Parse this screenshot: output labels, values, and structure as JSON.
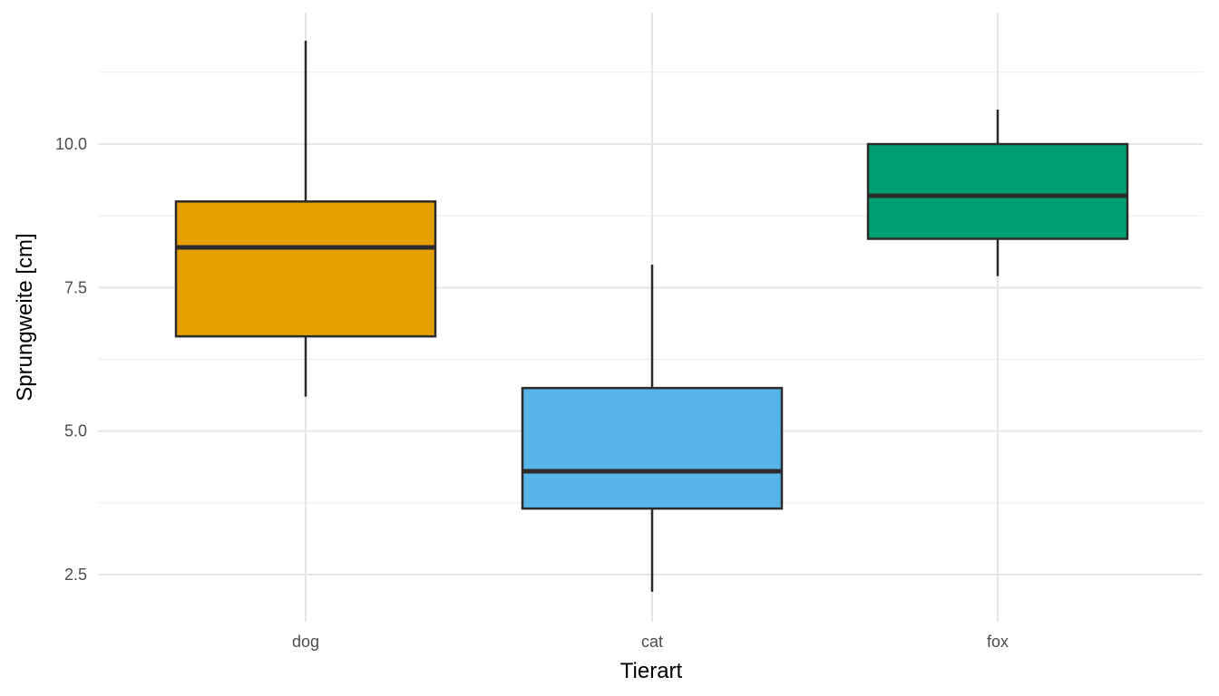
{
  "chart_data": {
    "type": "boxplot",
    "title": "",
    "xlabel": "Tierart",
    "ylabel": "Sprungweite [cm]",
    "ylim": [
      1.8,
      12.3
    ],
    "yticks": [
      2.5,
      5.0,
      7.5,
      10.0
    ],
    "ytick_labels": [
      "2.5",
      "5.0",
      "7.5",
      "10.0"
    ],
    "ygrid_minor": [
      3.75,
      6.25,
      8.75,
      11.25
    ],
    "grid": true,
    "categories": [
      "dog",
      "cat",
      "fox"
    ],
    "boxes": [
      {
        "category": "dog",
        "whisker_low": 5.6,
        "q1": 6.65,
        "median": 8.2,
        "q3": 9.0,
        "whisker_high": 11.8,
        "color": "#E69F00"
      },
      {
        "category": "cat",
        "whisker_low": 2.2,
        "q1": 3.65,
        "median": 4.3,
        "q3": 5.75,
        "whisker_high": 7.9,
        "color": "#56B4E9"
      },
      {
        "category": "fox",
        "whisker_low": 7.7,
        "q1": 8.35,
        "median": 9.1,
        "q3": 10.0,
        "whisker_high": 10.6,
        "color": "#009E73"
      }
    ]
  }
}
